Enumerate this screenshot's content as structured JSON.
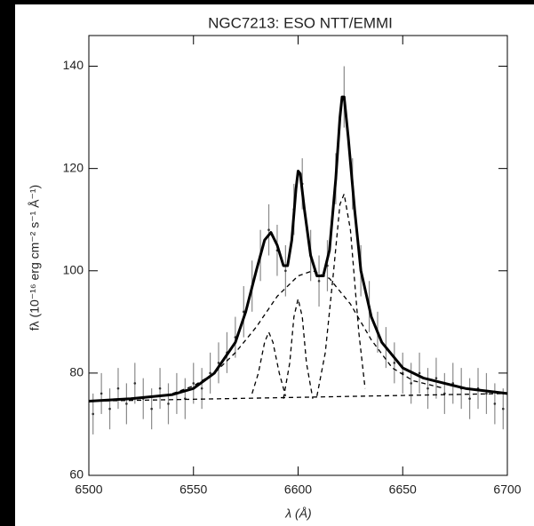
{
  "chart_data": {
    "type": "line",
    "title": "NGC7213: ESO NTT/EMMI",
    "xlabel": "λ (Å)",
    "ylabel": "fλ (10⁻¹⁶ erg cm⁻² s⁻¹ Å⁻¹)",
    "xlim": [
      6500,
      6700
    ],
    "xticks": [
      6500,
      6550,
      6600,
      6650,
      6700
    ],
    "ylim": [
      60,
      146
    ],
    "yticks": [
      60,
      80,
      100,
      120,
      140
    ],
    "series": [
      {
        "style": "errorbar",
        "color": "#8a8a8a",
        "x": [
          6502,
          6506,
          6510,
          6514,
          6518,
          6522,
          6526,
          6530,
          6534,
          6538,
          6542,
          6546,
          6550,
          6554,
          6558,
          6562,
          6566,
          6570,
          6574,
          6578,
          6582,
          6586,
          6590,
          6594,
          6598,
          6602,
          6606,
          6610,
          6614,
          6618,
          6622,
          6626,
          6630,
          6634,
          6638,
          6642,
          6646,
          6650,
          6654,
          6658,
          6662,
          6666,
          6670,
          6674,
          6678,
          6682,
          6686,
          6690,
          6694,
          6698
        ],
        "values": [
          72,
          76,
          73,
          77,
          74,
          78,
          75,
          73,
          77,
          74,
          76,
          75,
          78,
          77,
          80,
          82,
          84,
          87,
          92,
          97,
          103,
          108,
          104,
          100,
          112,
          117,
          103,
          98,
          101,
          118,
          134,
          117,
          100,
          93,
          88,
          85,
          82,
          80,
          78,
          80,
          77,
          79,
          76,
          78,
          77,
          75,
          77,
          76,
          74,
          73
        ],
        "errors": [
          4,
          4,
          4,
          4,
          4,
          4,
          4,
          4,
          4,
          4,
          4,
          4,
          4,
          4,
          4,
          4,
          4,
          4,
          5,
          5,
          5,
          5,
          5,
          5,
          5,
          5,
          5,
          5,
          5,
          5,
          6,
          5,
          5,
          5,
          4,
          4,
          4,
          4,
          4,
          4,
          4,
          4,
          4,
          4,
          4,
          4,
          4,
          4,
          4,
          4
        ]
      },
      {
        "style": "solid",
        "color": "#000000",
        "x": [
          6500,
          6520,
          6540,
          6550,
          6560,
          6570,
          6575,
          6580,
          6584,
          6587,
          6590,
          6593,
          6595,
          6597,
          6599,
          6600,
          6601,
          6603,
          6606,
          6609,
          6612,
          6615,
          6618,
          6620,
          6621,
          6622,
          6624,
          6627,
          6630,
          6635,
          6640,
          6650,
          6660,
          6680,
          6700
        ],
        "values": [
          74.5,
          75,
          75.8,
          77,
          80,
          86,
          92,
          100,
          106,
          107.5,
          105,
          101,
          101,
          106,
          116,
          119.5,
          119,
          112,
          103,
          99,
          99,
          104,
          118,
          130,
          134,
          134,
          126,
          112,
          100,
          91,
          86,
          81,
          79,
          77,
          76
        ]
      },
      {
        "style": "dashed",
        "color": "#000000",
        "x": [
          6540,
          6550,
          6560,
          6570,
          6580,
          6590,
          6600,
          6607,
          6615,
          6625,
          6635,
          6645,
          6655,
          6670
        ],
        "values": [
          76,
          77.5,
          80,
          84,
          89,
          95,
          99,
          100,
          98.5,
          93.5,
          86.5,
          81,
          78.5,
          77
        ]
      },
      {
        "style": "dashed",
        "color": "#000000",
        "x": [
          6578,
          6581,
          6584,
          6586,
          6588,
          6591,
          6594
        ],
        "values": [
          76,
          80,
          86,
          88,
          86,
          80,
          75.5
        ]
      },
      {
        "style": "dashed",
        "color": "#000000",
        "x": [
          6593,
          6596,
          6598,
          6600,
          6602,
          6604,
          6607
        ],
        "values": [
          75,
          82,
          91,
          94.5,
          91,
          82,
          75
        ]
      },
      {
        "style": "dashed",
        "color": "#000000",
        "x": [
          6609,
          6613,
          6617,
          6620,
          6622,
          6625,
          6629,
          6632
        ],
        "values": [
          75.5,
          84,
          100,
          113,
          115,
          108,
          88,
          77
        ]
      },
      {
        "style": "dashed",
        "color": "#000000",
        "x": [
          6500,
          6700
        ],
        "values": [
          74.5,
          76
        ]
      }
    ]
  }
}
